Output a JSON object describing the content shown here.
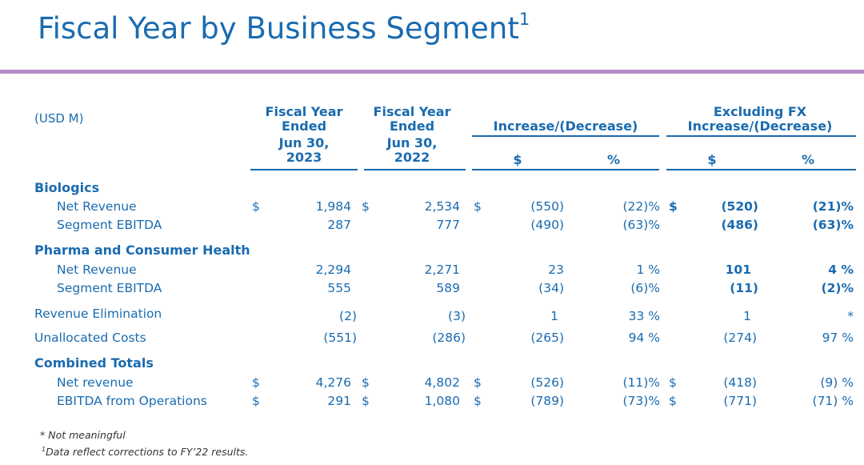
{
  "title": {
    "text": "Fiscal Year by Business Segment",
    "sup": "1"
  },
  "units_label": "(USD M)",
  "headers": {
    "fy23_line1": "Fiscal Year",
    "fy23_line2": "Ended",
    "fy23_line3": "Jun 30,",
    "fy23_line4": "2023",
    "fy22_line1": "Fiscal Year",
    "fy22_line2": "Ended",
    "fy22_line3": "Jun 30,",
    "fy22_line4": "2022",
    "inc": "Increase/(Decrease)",
    "exfx_line1": "Excluding FX",
    "exfx_line2": "Increase/(Decrease)",
    "dollar": "$",
    "pct": "%"
  },
  "rows": [
    {
      "type": "section",
      "label": "Biologics"
    },
    {
      "label": "Net Revenue",
      "d1": "$",
      "fy23": "1,984",
      "d2": "$",
      "fy22": "2,534",
      "d3": "$",
      "inc_d": "(550)",
      "inc_p": "(22)%",
      "d4": "$",
      "ex_d": "(520)",
      "ex_p": "(21)%",
      "bold_ex": true
    },
    {
      "label": "Segment EBITDA",
      "d1": "",
      "fy23": "287",
      "d2": "",
      "fy22": "777",
      "d3": "",
      "inc_d": "(490)",
      "inc_p": "(63)%",
      "d4": "",
      "ex_d": "(486)",
      "ex_p": "(63)%",
      "bold_ex": true
    },
    {
      "type": "section",
      "label": "Pharma and Consumer Health"
    },
    {
      "label": "Net Revenue",
      "d1": "",
      "fy23": "2,294",
      "d2": "",
      "fy22": "2,271",
      "d3": "",
      "inc_d": "23",
      "inc_p": "1 %",
      "d4": "",
      "ex_d": "101",
      "ex_p": "4 %",
      "bold_ex": true
    },
    {
      "label": "Segment EBITDA",
      "d1": "",
      "fy23": "555",
      "d2": "",
      "fy22": "589",
      "d3": "",
      "inc_d": "(34)",
      "inc_p": "(6)%",
      "d4": "",
      "ex_d": "(11)",
      "ex_p": "(2)%",
      "bold_ex": true
    },
    {
      "label": "Revenue Elimination",
      "top": true,
      "d1": "",
      "fy23": "(2)",
      "d2": "",
      "fy22": "(3)",
      "d3": "",
      "inc_d": "1",
      "inc_p": "33 %",
      "d4": "",
      "ex_d": "1",
      "ex_p": "*",
      "bold_ex": false
    },
    {
      "label": "Unallocated Costs",
      "top": true,
      "d1": "",
      "fy23": "(551)",
      "d2": "",
      "fy22": "(286)",
      "d3": "",
      "inc_d": "(265)",
      "inc_p": "94 %",
      "d4": "",
      "ex_d": "(274)",
      "ex_p": "97 %",
      "bold_ex": false
    },
    {
      "type": "section",
      "label": "Combined Totals"
    },
    {
      "label": "Net revenue",
      "d1": "$",
      "fy23": "4,276",
      "d2": "$",
      "fy22": "4,802",
      "d3": "$",
      "inc_d": "(526)",
      "inc_p": "(11)%",
      "d4": "$",
      "ex_d": "(418)",
      "ex_p": "(9) %",
      "bold_ex": false
    },
    {
      "label": "EBITDA from Operations",
      "d1": "$",
      "fy23": "291",
      "d2": "$",
      "fy22": "1,080",
      "d3": "$",
      "inc_d": "(789)",
      "inc_p": "(73)%",
      "d4": "$",
      "ex_d": "(771)",
      "ex_p": "(71) %",
      "bold_ex": false
    }
  ],
  "footnotes": {
    "star": "* Not meaningful",
    "one_sup": "1",
    "one": "Data reflect corrections to FY’22 results."
  }
}
